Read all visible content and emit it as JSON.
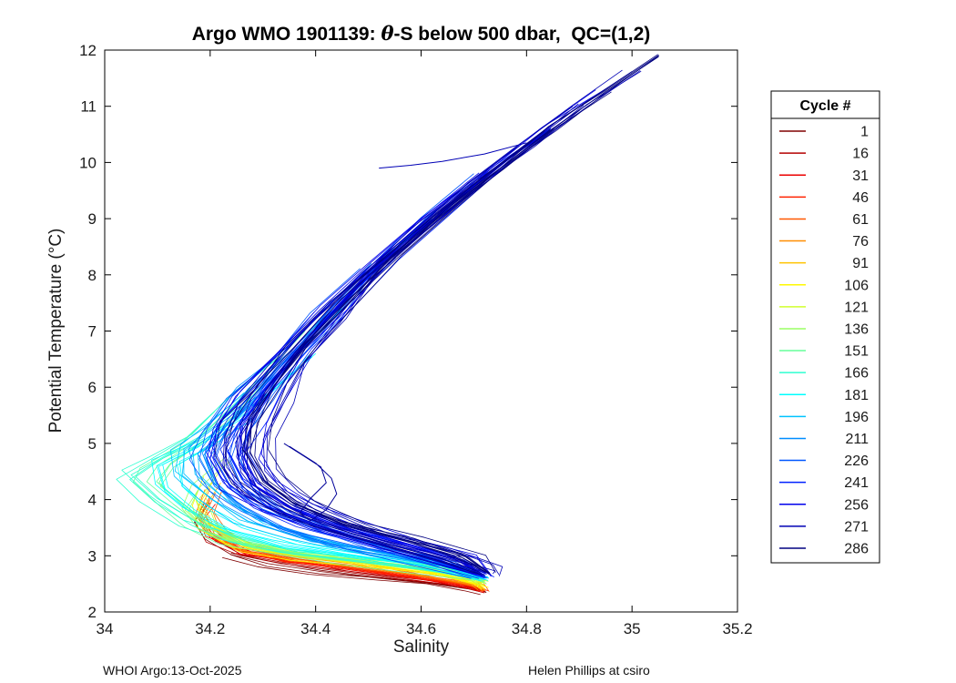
{
  "page": {
    "background": "#ffffff"
  },
  "title": {
    "prefix": "Argo WMO 1901139: ",
    "theta": "θ",
    "suffix": "-S below 500 dbar,  QC=(1,2)"
  },
  "footer": {
    "left": "WHOI Argo:13-Oct-2025",
    "right": "Helen Phillips at csiro"
  },
  "chart_data": {
    "type": "line",
    "title": "Argo WMO 1901139: θ-S below 500 dbar,  QC=(1,2)",
    "xlabel": "Salinity",
    "ylabel": "Potential Temperature (°C)",
    "xlim": [
      34,
      35.2
    ],
    "ylim": [
      2,
      12
    ],
    "xticks": [
      34,
      34.2,
      34.4,
      34.6,
      34.8,
      35,
      35.2
    ],
    "xtick_labels": [
      "34",
      "34.2",
      "34.4",
      "34.6",
      "34.8",
      "35",
      "35.2"
    ],
    "yticks": [
      2,
      3,
      4,
      5,
      6,
      7,
      8,
      9,
      10,
      11,
      12
    ],
    "ytick_labels": [
      "2",
      "3",
      "4",
      "5",
      "6",
      "7",
      "8",
      "9",
      "10",
      "11",
      "12"
    ],
    "grid": false,
    "legend": {
      "title": "Cycle #",
      "position": "outside-right"
    },
    "colormap": "jet-reversed",
    "series": [
      {
        "cycle": 1,
        "color": "#800000",
        "copies": 4,
        "spread": 0.02,
        "points": [
          [
            34.19,
            3.95
          ],
          [
            34.17,
            3.6
          ],
          [
            34.19,
            3.3
          ],
          [
            34.24,
            3.02
          ],
          [
            34.31,
            2.86
          ],
          [
            34.41,
            2.72
          ],
          [
            34.52,
            2.6
          ],
          [
            34.62,
            2.5
          ],
          [
            34.69,
            2.41
          ],
          [
            34.72,
            2.34
          ]
        ]
      },
      {
        "cycle": 16,
        "color": "#B50000",
        "copies": 4,
        "spread": 0.02,
        "points": [
          [
            34.2,
            4.0
          ],
          [
            34.18,
            3.65
          ],
          [
            34.2,
            3.32
          ],
          [
            34.26,
            3.02
          ],
          [
            34.34,
            2.88
          ],
          [
            34.45,
            2.74
          ],
          [
            34.57,
            2.59
          ],
          [
            34.67,
            2.46
          ],
          [
            34.71,
            2.37
          ]
        ]
      },
      {
        "cycle": 31,
        "color": "#EB0000",
        "copies": 4,
        "spread": 0.02,
        "points": [
          [
            34.21,
            3.92
          ],
          [
            34.18,
            3.56
          ],
          [
            34.21,
            3.26
          ],
          [
            34.27,
            3.02
          ],
          [
            34.36,
            2.88
          ],
          [
            34.48,
            2.73
          ],
          [
            34.6,
            2.58
          ],
          [
            34.69,
            2.44
          ],
          [
            34.72,
            2.36
          ]
        ]
      },
      {
        "cycle": 46,
        "color": "#FF2200",
        "copies": 4,
        "spread": 0.022,
        "points": [
          [
            34.2,
            4.06
          ],
          [
            34.18,
            3.7
          ],
          [
            34.2,
            3.36
          ],
          [
            34.26,
            3.06
          ],
          [
            34.34,
            2.9
          ],
          [
            34.46,
            2.76
          ],
          [
            34.59,
            2.61
          ],
          [
            34.69,
            2.46
          ],
          [
            34.72,
            2.38
          ]
        ]
      },
      {
        "cycle": 61,
        "color": "#FF5700",
        "copies": 4,
        "spread": 0.022,
        "points": [
          [
            34.21,
            4.12
          ],
          [
            34.19,
            3.72
          ],
          [
            34.21,
            3.36
          ],
          [
            34.27,
            3.08
          ],
          [
            34.36,
            2.92
          ],
          [
            34.49,
            2.77
          ],
          [
            34.62,
            2.61
          ],
          [
            34.71,
            2.44
          ],
          [
            34.72,
            2.38
          ]
        ]
      },
      {
        "cycle": 76,
        "color": "#FF8D00",
        "copies": 4,
        "spread": 0.024,
        "points": [
          [
            34.2,
            4.2
          ],
          [
            34.18,
            3.8
          ],
          [
            34.2,
            3.42
          ],
          [
            34.26,
            3.1
          ],
          [
            34.35,
            2.95
          ],
          [
            34.48,
            2.8
          ],
          [
            34.61,
            2.64
          ],
          [
            34.7,
            2.47
          ],
          [
            34.72,
            2.4
          ]
        ]
      },
      {
        "cycle": 91,
        "color": "#FFC300",
        "copies": 4,
        "spread": 0.024,
        "points": [
          [
            34.22,
            4.3
          ],
          [
            34.19,
            3.86
          ],
          [
            34.21,
            3.46
          ],
          [
            34.27,
            3.13
          ],
          [
            34.37,
            2.97
          ],
          [
            34.5,
            2.82
          ],
          [
            34.63,
            2.66
          ],
          [
            34.71,
            2.47
          ],
          [
            34.72,
            2.41
          ]
        ]
      },
      {
        "cycle": 106,
        "color": "#FFF800",
        "copies": 5,
        "spread": 0.025,
        "points": [
          [
            34.21,
            4.4
          ],
          [
            34.18,
            3.92
          ],
          [
            34.2,
            3.5
          ],
          [
            34.26,
            3.16
          ],
          [
            34.36,
            3.0
          ],
          [
            34.5,
            2.85
          ],
          [
            34.63,
            2.68
          ],
          [
            34.71,
            2.49
          ],
          [
            34.72,
            2.42
          ]
        ]
      },
      {
        "cycle": 121,
        "color": "#D0FF2F",
        "copies": 5,
        "spread": 0.026,
        "points": [
          [
            34.22,
            4.52
          ],
          [
            34.18,
            4.02
          ],
          [
            34.2,
            3.56
          ],
          [
            34.27,
            3.2
          ],
          [
            34.38,
            3.03
          ],
          [
            34.52,
            2.87
          ],
          [
            34.65,
            2.7
          ],
          [
            34.72,
            2.51
          ]
        ]
      },
      {
        "cycle": 136,
        "color": "#9AFF65",
        "copies": 5,
        "spread": 0.028,
        "points": [
          [
            34.24,
            4.7
          ],
          [
            34.18,
            4.22
          ],
          [
            34.16,
            3.82
          ],
          [
            34.2,
            3.42
          ],
          [
            34.28,
            3.16
          ],
          [
            34.4,
            3.0
          ],
          [
            34.55,
            2.86
          ],
          [
            34.67,
            2.71
          ],
          [
            34.72,
            2.53
          ]
        ]
      },
      {
        "cycle": 151,
        "color": "#65FF9A",
        "copies": 5,
        "spread": 0.03,
        "points": [
          [
            34.38,
            7.0
          ],
          [
            34.31,
            6.3
          ],
          [
            34.24,
            5.62
          ],
          [
            34.17,
            5.02
          ],
          [
            34.1,
            4.6
          ],
          [
            34.08,
            4.32
          ],
          [
            34.13,
            3.92
          ],
          [
            34.18,
            3.56
          ],
          [
            34.25,
            3.26
          ],
          [
            34.35,
            3.06
          ],
          [
            34.48,
            2.9
          ],
          [
            34.62,
            2.75
          ],
          [
            34.71,
            2.56
          ]
        ]
      },
      {
        "cycle": 166,
        "color": "#2FFFD0",
        "copies": 5,
        "spread": 0.03,
        "points": [
          [
            34.42,
            7.3
          ],
          [
            34.34,
            6.52
          ],
          [
            34.26,
            5.82
          ],
          [
            34.18,
            5.12
          ],
          [
            34.1,
            4.7
          ],
          [
            34.05,
            4.44
          ],
          [
            34.1,
            4.02
          ],
          [
            34.17,
            3.62
          ],
          [
            34.25,
            3.32
          ],
          [
            34.36,
            3.1
          ],
          [
            34.5,
            2.94
          ],
          [
            34.64,
            2.78
          ],
          [
            34.72,
            2.57
          ]
        ]
      },
      {
        "cycle": 181,
        "color": "#00FFFF",
        "copies": 6,
        "spread": 0.03,
        "points": [
          [
            34.4,
            6.6
          ],
          [
            34.33,
            6.02
          ],
          [
            34.26,
            5.44
          ],
          [
            34.18,
            4.96
          ],
          [
            34.11,
            4.62
          ],
          [
            34.12,
            4.22
          ],
          [
            34.17,
            3.82
          ],
          [
            34.24,
            3.46
          ],
          [
            34.34,
            3.2
          ],
          [
            34.47,
            3.0
          ],
          [
            34.61,
            2.81
          ],
          [
            34.72,
            2.58
          ]
        ]
      },
      {
        "cycle": 196,
        "color": "#00C3FF",
        "copies": 6,
        "spread": 0.032,
        "points": [
          [
            34.45,
            7.4
          ],
          [
            34.37,
            6.62
          ],
          [
            34.29,
            5.92
          ],
          [
            34.21,
            5.32
          ],
          [
            34.15,
            4.9
          ],
          [
            34.15,
            4.46
          ],
          [
            34.2,
            4.02
          ],
          [
            34.27,
            3.62
          ],
          [
            34.37,
            3.32
          ],
          [
            34.5,
            3.06
          ],
          [
            34.64,
            2.83
          ],
          [
            34.72,
            2.6
          ]
        ]
      },
      {
        "cycle": 211,
        "color": "#008DFF",
        "copies": 7,
        "spread": 0.04,
        "points": [
          [
            34.62,
            9.0
          ],
          [
            34.52,
            8.2
          ],
          [
            34.44,
            7.4
          ],
          [
            34.36,
            6.62
          ],
          [
            34.29,
            5.92
          ],
          [
            34.23,
            5.3
          ],
          [
            34.19,
            4.82
          ],
          [
            34.21,
            4.32
          ],
          [
            34.26,
            3.88
          ],
          [
            34.33,
            3.52
          ],
          [
            34.43,
            3.22
          ],
          [
            34.56,
            3.0
          ],
          [
            34.68,
            2.78
          ],
          [
            34.72,
            2.62
          ]
        ]
      },
      {
        "cycle": 226,
        "color": "#0057FF",
        "copies": 8,
        "spread": 0.05,
        "points": [
          [
            34.7,
            9.8
          ],
          [
            34.6,
            9.02
          ],
          [
            34.5,
            8.12
          ],
          [
            34.42,
            7.32
          ],
          [
            34.34,
            6.52
          ],
          [
            34.28,
            5.82
          ],
          [
            34.23,
            5.22
          ],
          [
            34.21,
            4.72
          ],
          [
            34.24,
            4.22
          ],
          [
            34.3,
            3.82
          ],
          [
            34.39,
            3.47
          ],
          [
            34.5,
            3.17
          ],
          [
            34.62,
            2.92
          ],
          [
            34.71,
            2.63
          ]
        ]
      },
      {
        "cycle": 241,
        "color": "#0022FF",
        "copies": 9,
        "spread": 0.055,
        "points": [
          [
            34.85,
            10.6
          ],
          [
            34.74,
            9.9
          ],
          [
            34.64,
            9.1
          ],
          [
            34.54,
            8.3
          ],
          [
            34.45,
            7.5
          ],
          [
            34.37,
            6.72
          ],
          [
            34.31,
            6.02
          ],
          [
            34.26,
            5.42
          ],
          [
            34.23,
            4.9
          ],
          [
            34.26,
            4.36
          ],
          [
            34.32,
            3.92
          ],
          [
            34.41,
            3.56
          ],
          [
            34.52,
            3.26
          ],
          [
            34.64,
            2.96
          ],
          [
            34.72,
            2.64
          ]
        ]
      },
      {
        "cycle": 256,
        "color": "#0000EB",
        "copies": 10,
        "spread": 0.058,
        "points": [
          [
            34.95,
            11.3
          ],
          [
            34.84,
            10.62
          ],
          [
            34.73,
            9.84
          ],
          [
            34.62,
            9.02
          ],
          [
            34.52,
            8.22
          ],
          [
            34.44,
            7.42
          ],
          [
            34.36,
            6.62
          ],
          [
            34.3,
            5.92
          ],
          [
            34.26,
            5.32
          ],
          [
            34.25,
            4.76
          ],
          [
            34.28,
            4.26
          ],
          [
            34.35,
            3.86
          ],
          [
            34.45,
            3.51
          ],
          [
            34.56,
            3.21
          ],
          [
            34.66,
            2.96
          ],
          [
            34.72,
            2.66
          ]
        ]
      },
      {
        "cycle": 271,
        "color": "#0000B5",
        "copies": 10,
        "spread": 0.058,
        "points": [
          [
            35.0,
            11.62
          ],
          [
            34.9,
            11.0
          ],
          [
            34.8,
            10.3
          ],
          [
            34.7,
            9.6
          ],
          [
            34.6,
            8.8
          ],
          [
            34.5,
            8.0
          ],
          [
            34.42,
            7.2
          ],
          [
            34.35,
            6.42
          ],
          [
            34.3,
            5.72
          ],
          [
            34.27,
            5.1
          ],
          [
            34.27,
            4.56
          ],
          [
            34.31,
            4.12
          ],
          [
            34.38,
            3.72
          ],
          [
            34.48,
            3.4
          ],
          [
            34.6,
            3.1
          ],
          [
            34.7,
            2.82
          ],
          [
            34.73,
            2.67
          ]
        ]
      },
      {
        "cycle": 286,
        "color": "#000080",
        "copies": 10,
        "spread": 0.06,
        "points": [
          [
            35.05,
            11.88
          ],
          [
            34.95,
            11.26
          ],
          [
            34.85,
            10.6
          ],
          [
            34.75,
            9.9
          ],
          [
            34.65,
            9.15
          ],
          [
            34.55,
            8.35
          ],
          [
            34.46,
            7.52
          ],
          [
            34.38,
            6.72
          ],
          [
            34.32,
            6.02
          ],
          [
            34.28,
            5.4
          ],
          [
            34.27,
            4.82
          ],
          [
            34.3,
            4.32
          ],
          [
            34.36,
            3.92
          ],
          [
            34.45,
            3.56
          ],
          [
            34.57,
            3.26
          ],
          [
            34.68,
            2.96
          ],
          [
            34.73,
            2.7
          ]
        ]
      }
    ],
    "extras": [
      {
        "name": "deep-blue-loop",
        "color": "#000099",
        "points": [
          [
            34.35,
            4.95
          ],
          [
            34.4,
            4.65
          ],
          [
            34.43,
            4.38
          ],
          [
            34.44,
            4.1
          ],
          [
            34.42,
            3.82
          ],
          [
            34.39,
            3.62
          ],
          [
            34.37,
            3.76
          ],
          [
            34.39,
            4.02
          ],
          [
            34.42,
            4.3
          ],
          [
            34.41,
            4.58
          ],
          [
            34.37,
            4.82
          ],
          [
            34.34,
            5.0
          ]
        ]
      },
      {
        "name": "detached-blue-strand",
        "color": "#0000B5",
        "points": [
          [
            34.52,
            9.9
          ],
          [
            34.58,
            9.95
          ],
          [
            34.64,
            10.02
          ],
          [
            34.72,
            10.15
          ],
          [
            34.8,
            10.35
          ]
        ]
      }
    ]
  }
}
